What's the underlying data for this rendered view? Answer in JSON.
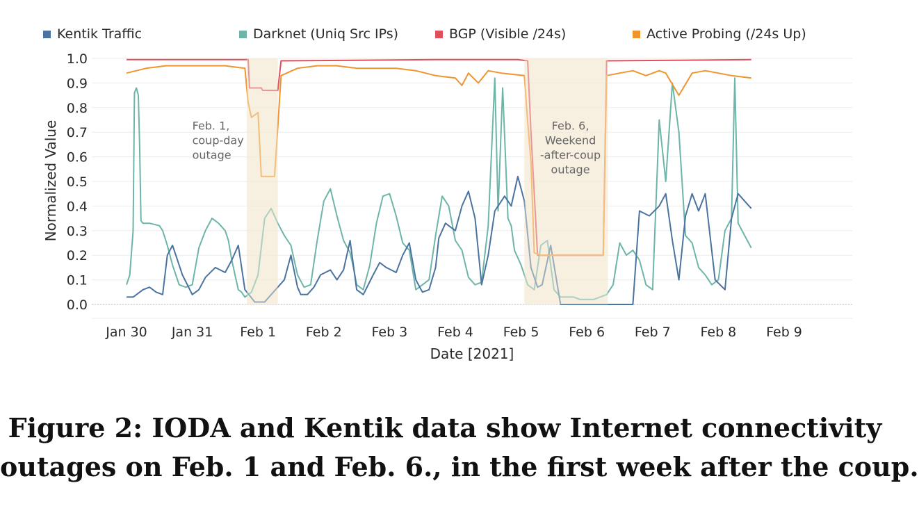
{
  "chart_data": {
    "type": "line",
    "xlabel": "Date [2021]",
    "ylabel": "Normalized Value",
    "ylim": [
      0,
      1.0
    ],
    "xlim": [
      "2021-01-30",
      "2021-02-09 12:00"
    ],
    "yticks": [
      "0.0",
      "0.1",
      "0.2",
      "0.3",
      "0.4",
      "0.5",
      "0.6",
      "0.7",
      "0.8",
      "0.9",
      "1.0"
    ],
    "xticks": [
      "Jan 30",
      "Jan 31",
      "Feb 1",
      "Feb 2",
      "Feb 3",
      "Feb 4",
      "Feb 5",
      "Feb 6",
      "Feb 7",
      "Feb 8",
      "Feb 9"
    ],
    "grid": true,
    "legend_position": "top",
    "series": [
      {
        "name": "Kentik Traffic",
        "color": "#4a73a0",
        "x": [
          0,
          0.1,
          0.25,
          0.35,
          0.45,
          0.55,
          0.62,
          0.7,
          0.85,
          1.0,
          1.1,
          1.2,
          1.35,
          1.5,
          1.6,
          1.7,
          1.8,
          1.95,
          2.0,
          2.1,
          2.2,
          2.3,
          2.4,
          2.5,
          2.6,
          2.65,
          2.75,
          2.85,
          2.95,
          3.1,
          3.2,
          3.3,
          3.4,
          3.5,
          3.6,
          3.75,
          3.85,
          3.95,
          4.1,
          4.2,
          4.3,
          4.4,
          4.5,
          4.6,
          4.7,
          4.75,
          4.85,
          5.0,
          5.1,
          5.2,
          5.3,
          5.4,
          5.5,
          5.6,
          5.65,
          5.75,
          5.85,
          5.95,
          6.05,
          6.15,
          6.25,
          6.32,
          6.45,
          6.6,
          6.7,
          6.8,
          6.9,
          7.0,
          7.1,
          7.15,
          7.25,
          7.4,
          7.55,
          7.7,
          7.8,
          7.95,
          8.1,
          8.2,
          8.3,
          8.4,
          8.5,
          8.6,
          8.7,
          8.8,
          8.95,
          9.1,
          9.2,
          9.3,
          9.4,
          9.5
        ],
        "values": [
          0.03,
          0.03,
          0.06,
          0.07,
          0.05,
          0.04,
          0.2,
          0.24,
          0.12,
          0.04,
          0.06,
          0.11,
          0.15,
          0.13,
          0.18,
          0.24,
          0.06,
          0.01,
          0.01,
          0.01,
          0.04,
          0.07,
          0.1,
          0.2,
          0.07,
          0.04,
          0.04,
          0.07,
          0.12,
          0.14,
          0.1,
          0.14,
          0.26,
          0.06,
          0.04,
          0.12,
          0.17,
          0.15,
          0.13,
          0.2,
          0.25,
          0.1,
          0.05,
          0.06,
          0.15,
          0.27,
          0.33,
          0.3,
          0.4,
          0.46,
          0.35,
          0.08,
          0.2,
          0.38,
          0.4,
          0.44,
          0.4,
          0.52,
          0.42,
          0.15,
          0.07,
          0.08,
          0.24,
          0.0,
          0.0,
          0.0,
          0.0,
          0.0,
          0.0,
          0.0,
          0.0,
          0.0,
          0.0,
          0.0,
          0.38,
          0.36,
          0.4,
          0.45,
          0.26,
          0.1,
          0.36,
          0.45,
          0.38,
          0.45,
          0.1,
          0.06,
          0.35,
          0.45,
          0.42,
          0.39
        ]
      },
      {
        "name": "Darknet (Uniq Src IPs)",
        "color": "#6db5a9",
        "x": [
          0,
          0.05,
          0.1,
          0.12,
          0.15,
          0.18,
          0.2,
          0.22,
          0.25,
          0.35,
          0.5,
          0.55,
          0.62,
          0.7,
          0.8,
          0.9,
          1.0,
          1.1,
          1.2,
          1.3,
          1.4,
          1.5,
          1.55,
          1.6,
          1.7,
          1.75,
          1.8,
          1.9,
          2.0,
          2.1,
          2.2,
          2.3,
          2.4,
          2.5,
          2.6,
          2.7,
          2.8,
          2.9,
          3.0,
          3.1,
          3.2,
          3.3,
          3.4,
          3.45,
          3.5,
          3.6,
          3.7,
          3.8,
          3.9,
          4.0,
          4.1,
          4.2,
          4.3,
          4.4,
          4.5,
          4.6,
          4.7,
          4.8,
          4.9,
          5.0,
          5.1,
          5.2,
          5.3,
          5.4,
          5.5,
          5.6,
          5.65,
          5.72,
          5.8,
          5.85,
          5.9,
          6.0,
          6.1,
          6.2,
          6.3,
          6.4,
          6.5,
          6.6,
          6.7,
          6.8,
          6.9,
          7.0,
          7.1,
          7.2,
          7.3,
          7.4,
          7.5,
          7.6,
          7.7,
          7.8,
          7.9,
          8.0,
          8.1,
          8.2,
          8.3,
          8.4,
          8.5,
          8.6,
          8.7,
          8.8,
          8.9,
          9.0,
          9.1,
          9.2,
          9.25,
          9.3,
          9.4,
          9.5
        ],
        "values": [
          0.08,
          0.12,
          0.3,
          0.86,
          0.88,
          0.85,
          0.64,
          0.34,
          0.33,
          0.33,
          0.32,
          0.3,
          0.24,
          0.16,
          0.08,
          0.07,
          0.08,
          0.23,
          0.3,
          0.35,
          0.33,
          0.3,
          0.26,
          0.18,
          0.06,
          0.05,
          0.03,
          0.05,
          0.12,
          0.35,
          0.39,
          0.33,
          0.28,
          0.24,
          0.12,
          0.07,
          0.08,
          0.26,
          0.42,
          0.47,
          0.36,
          0.26,
          0.21,
          0.15,
          0.08,
          0.06,
          0.16,
          0.33,
          0.44,
          0.45,
          0.36,
          0.25,
          0.22,
          0.06,
          0.08,
          0.1,
          0.28,
          0.44,
          0.4,
          0.26,
          0.22,
          0.11,
          0.08,
          0.09,
          0.32,
          0.92,
          0.38,
          0.88,
          0.35,
          0.32,
          0.22,
          0.16,
          0.08,
          0.06,
          0.24,
          0.26,
          0.06,
          0.03,
          0.03,
          0.03,
          0.02,
          0.02,
          0.02,
          0.03,
          0.04,
          0.08,
          0.25,
          0.2,
          0.22,
          0.18,
          0.08,
          0.06,
          0.75,
          0.5,
          0.9,
          0.7,
          0.28,
          0.25,
          0.15,
          0.12,
          0.08,
          0.1,
          0.3,
          0.35,
          0.92,
          0.33,
          0.28,
          0.23
        ]
      },
      {
        "name": "BGP (Visible /24s)",
        "color": "#e0505a",
        "x": [
          0,
          1.85,
          1.87,
          2.05,
          2.07,
          2.3,
          2.35,
          4.7,
          5.7,
          5.95,
          6.1,
          6.15,
          6.25,
          7.25,
          7.3,
          9.5
        ],
        "values": [
          0.995,
          0.995,
          0.88,
          0.88,
          0.87,
          0.87,
          0.99,
          0.995,
          0.995,
          0.995,
          0.99,
          0.7,
          0.2,
          0.2,
          0.99,
          0.995
        ]
      },
      {
        "name": "Active Probing (/24s Up)",
        "color": "#f0942e",
        "x": [
          0,
          0.3,
          0.6,
          0.9,
          1.2,
          1.5,
          1.8,
          1.85,
          1.9,
          2.0,
          2.05,
          2.1,
          2.15,
          2.25,
          2.3,
          2.35,
          2.6,
          2.9,
          3.2,
          3.5,
          3.8,
          4.1,
          4.4,
          4.7,
          5.0,
          5.1,
          5.2,
          5.35,
          5.5,
          5.7,
          6.05,
          6.1,
          6.15,
          6.2,
          6.3,
          6.5,
          7.0,
          7.25,
          7.3,
          7.5,
          7.7,
          7.9,
          8.1,
          8.2,
          8.4,
          8.6,
          8.8,
          9.0,
          9.2,
          9.5
        ],
        "values": [
          0.94,
          0.96,
          0.97,
          0.97,
          0.97,
          0.97,
          0.96,
          0.82,
          0.76,
          0.78,
          0.52,
          0.52,
          0.52,
          0.52,
          0.72,
          0.93,
          0.96,
          0.97,
          0.97,
          0.96,
          0.96,
          0.96,
          0.95,
          0.93,
          0.92,
          0.89,
          0.94,
          0.9,
          0.95,
          0.94,
          0.93,
          0.74,
          0.58,
          0.21,
          0.2,
          0.2,
          0.2,
          0.2,
          0.93,
          0.94,
          0.95,
          0.93,
          0.95,
          0.94,
          0.85,
          0.94,
          0.95,
          0.94,
          0.93,
          0.92
        ]
      }
    ],
    "shaded_regions": [
      {
        "x_start": 1.83,
        "x_end": 2.3
      },
      {
        "x_start": 6.05,
        "x_end": 7.32
      }
    ],
    "annotations": [
      {
        "lines": [
          "Feb. 1,",
          "coup-day",
          "outage"
        ],
        "x": 1.0,
        "y": 0.71
      },
      {
        "lines": [
          "Feb. 6,",
          "Weekend",
          "-after-coup",
          "outage"
        ],
        "x": 6.75,
        "y": 0.71
      }
    ]
  },
  "caption": {
    "line1": "Figure 2: IODA and Kentik data show Internet connectivity",
    "line2": "outages on Feb. 1 and Feb. 6., in the first week after the coup."
  }
}
